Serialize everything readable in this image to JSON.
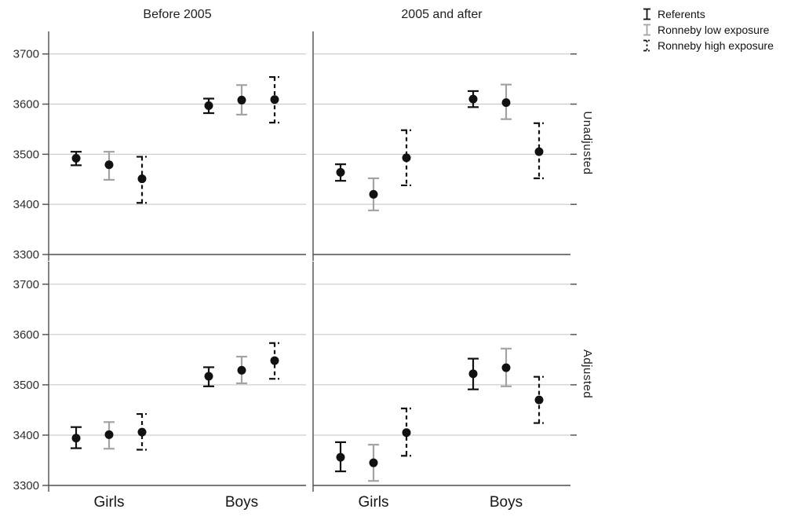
{
  "colors": {
    "background": "#ffffff",
    "point": "#111111",
    "referents": "#111111",
    "low_exposure": "#a3a3a3",
    "high_exposure": "#111111",
    "gridline": "#c2c2c2",
    "axis": "#4d4d4d",
    "text": "#1f1f1f"
  },
  "legend": {
    "items": [
      "Referents",
      "Ronneby low exposure",
      "Ronneby high exposure"
    ]
  },
  "chart_data": {
    "type": "scatter",
    "subtype": "error-bar-panel-grid",
    "title": "",
    "xlabel": "",
    "ylabel": "",
    "grid": true,
    "legend_position": "top-right",
    "col_facets": [
      "Before 2005",
      "2005 and after"
    ],
    "row_facets": [
      "Unadjusted",
      "Adjusted"
    ],
    "x_categories": [
      "Girls",
      "Boys"
    ],
    "y_ticks": [
      3300,
      3400,
      3500,
      3600,
      3700
    ],
    "ylim": [
      3300,
      3745
    ],
    "series": [
      {
        "name": "Referents",
        "style": "solid-black",
        "color": "#111111"
      },
      {
        "name": "Ronneby low exposure",
        "style": "solid-gray",
        "color": "#a3a3a3"
      },
      {
        "name": "Ronneby high exposure",
        "style": "dashed-black",
        "color": "#111111"
      }
    ],
    "panels": [
      {
        "row": "Unadjusted",
        "col": "Before 2005",
        "points": [
          {
            "x": "Girls",
            "series": "Referents",
            "est": 3492,
            "lo": 3478,
            "hi": 3505
          },
          {
            "x": "Girls",
            "series": "Ronneby low exposure",
            "est": 3479,
            "lo": 3449,
            "hi": 3505
          },
          {
            "x": "Girls",
            "series": "Ronneby high exposure",
            "est": 3451,
            "lo": 3403,
            "hi": 3495
          },
          {
            "x": "Boys",
            "series": "Referents",
            "est": 3597,
            "lo": 3582,
            "hi": 3611
          },
          {
            "x": "Boys",
            "series": "Ronneby low exposure",
            "est": 3608,
            "lo": 3579,
            "hi": 3638
          },
          {
            "x": "Boys",
            "series": "Ronneby high exposure",
            "est": 3609,
            "lo": 3563,
            "hi": 3654
          }
        ]
      },
      {
        "row": "Unadjusted",
        "col": "2005 and after",
        "points": [
          {
            "x": "Girls",
            "series": "Referents",
            "est": 3464,
            "lo": 3447,
            "hi": 3480
          },
          {
            "x": "Girls",
            "series": "Ronneby low exposure",
            "est": 3420,
            "lo": 3388,
            "hi": 3452
          },
          {
            "x": "Girls",
            "series": "Ronneby high exposure",
            "est": 3493,
            "lo": 3438,
            "hi": 3548
          },
          {
            "x": "Boys",
            "series": "Referents",
            "est": 3610,
            "lo": 3594,
            "hi": 3626
          },
          {
            "x": "Boys",
            "series": "Ronneby low exposure",
            "est": 3603,
            "lo": 3570,
            "hi": 3639
          },
          {
            "x": "Boys",
            "series": "Ronneby high exposure",
            "est": 3505,
            "lo": 3452,
            "hi": 3562
          }
        ]
      },
      {
        "row": "Adjusted",
        "col": "Before 2005",
        "points": [
          {
            "x": "Girls",
            "series": "Referents",
            "est": 3394,
            "lo": 3374,
            "hi": 3416
          },
          {
            "x": "Girls",
            "series": "Ronneby low exposure",
            "est": 3401,
            "lo": 3373,
            "hi": 3426
          },
          {
            "x": "Girls",
            "series": "Ronneby high exposure",
            "est": 3406,
            "lo": 3371,
            "hi": 3442
          },
          {
            "x": "Boys",
            "series": "Referents",
            "est": 3517,
            "lo": 3497,
            "hi": 3535
          },
          {
            "x": "Boys",
            "series": "Ronneby low exposure",
            "est": 3529,
            "lo": 3503,
            "hi": 3556
          },
          {
            "x": "Boys",
            "series": "Ronneby high exposure",
            "est": 3548,
            "lo": 3512,
            "hi": 3583
          }
        ]
      },
      {
        "row": "Adjusted",
        "col": "2005 and after",
        "points": [
          {
            "x": "Girls",
            "series": "Referents",
            "est": 3356,
            "lo": 3328,
            "hi": 3386
          },
          {
            "x": "Girls",
            "series": "Ronneby low exposure",
            "est": 3345,
            "lo": 3309,
            "hi": 3381
          },
          {
            "x": "Girls",
            "series": "Ronneby high exposure",
            "est": 3405,
            "lo": 3359,
            "hi": 3453
          },
          {
            "x": "Boys",
            "series": "Referents",
            "est": 3522,
            "lo": 3491,
            "hi": 3552
          },
          {
            "x": "Boys",
            "series": "Ronneby low exposure",
            "est": 3534,
            "lo": 3497,
            "hi": 3572
          },
          {
            "x": "Boys",
            "series": "Ronneby high exposure",
            "est": 3470,
            "lo": 3424,
            "hi": 3516
          }
        ]
      }
    ]
  }
}
